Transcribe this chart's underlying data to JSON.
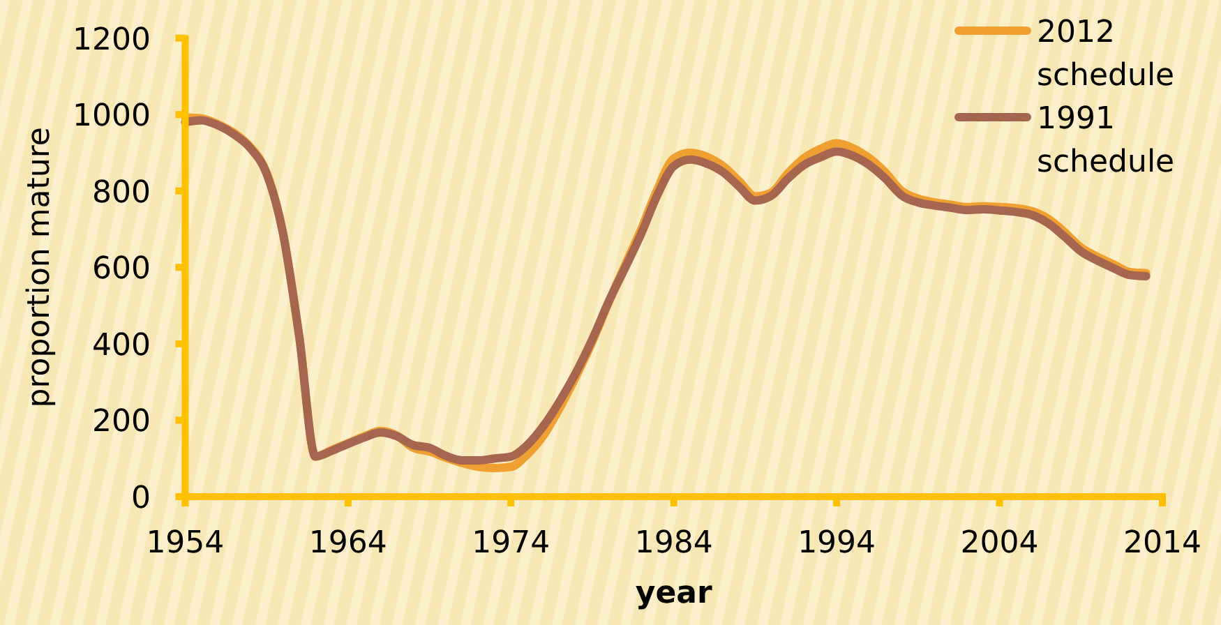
{
  "chart_data": {
    "type": "line",
    "xlabel": "year",
    "ylabel": "proportion mature",
    "x": [
      1954,
      1955,
      1956,
      1957,
      1958,
      1959,
      1960,
      1961,
      1962,
      1963,
      1964,
      1965,
      1966,
      1967,
      1968,
      1969,
      1970,
      1971,
      1972,
      1973,
      1974,
      1975,
      1976,
      1977,
      1978,
      1979,
      1980,
      1981,
      1982,
      1983,
      1984,
      1985,
      1986,
      1987,
      1988,
      1989,
      1990,
      1991,
      1992,
      1993,
      1994,
      1995,
      1996,
      1997,
      1998,
      1999,
      2000,
      2001,
      2002,
      2003,
      2004,
      2005,
      2006,
      2007,
      2008,
      2009,
      2010,
      2011,
      2012,
      2013
    ],
    "series": [
      {
        "name": "2012 schedule",
        "color": "#f0a030",
        "values": [
          992,
          990,
          975,
          952,
          915,
          848,
          692,
          420,
          105,
          122,
          140,
          158,
          172,
          160,
          128,
          118,
          102,
          88,
          78,
          75,
          78,
          110,
          160,
          232,
          315,
          405,
          508,
          605,
          700,
          805,
          885,
          900,
          890,
          866,
          826,
          786,
          796,
          846,
          886,
          910,
          925,
          912,
          886,
          848,
          800,
          780,
          770,
          764,
          758,
          760,
          758,
          755,
          747,
          727,
          692,
          652,
          628,
          608,
          588,
          585
        ]
      },
      {
        "name": "1991 schedule",
        "color": "#a5654f",
        "values": [
          980,
          985,
          972,
          948,
          912,
          845,
          690,
          420,
          105,
          120,
          138,
          155,
          168,
          158,
          135,
          128,
          107,
          95,
          95,
          100,
          105,
          135,
          185,
          250,
          325,
          412,
          510,
          598,
          688,
          790,
          865,
          882,
          872,
          850,
          812,
          775,
          788,
          832,
          868,
          888,
          903,
          892,
          868,
          832,
          788,
          770,
          762,
          756,
          750,
          752,
          749,
          745,
          737,
          715,
          680,
          642,
          618,
          598,
          580,
          577
        ]
      }
    ],
    "xlim": [
      1954,
      2014
    ],
    "ylim": [
      0,
      1200
    ],
    "xticks": [
      1954,
      1964,
      1974,
      1984,
      1994,
      2004,
      2014
    ],
    "yticks": [
      0,
      200,
      400,
      600,
      800,
      1000,
      1200
    ],
    "legend": "top right"
  }
}
